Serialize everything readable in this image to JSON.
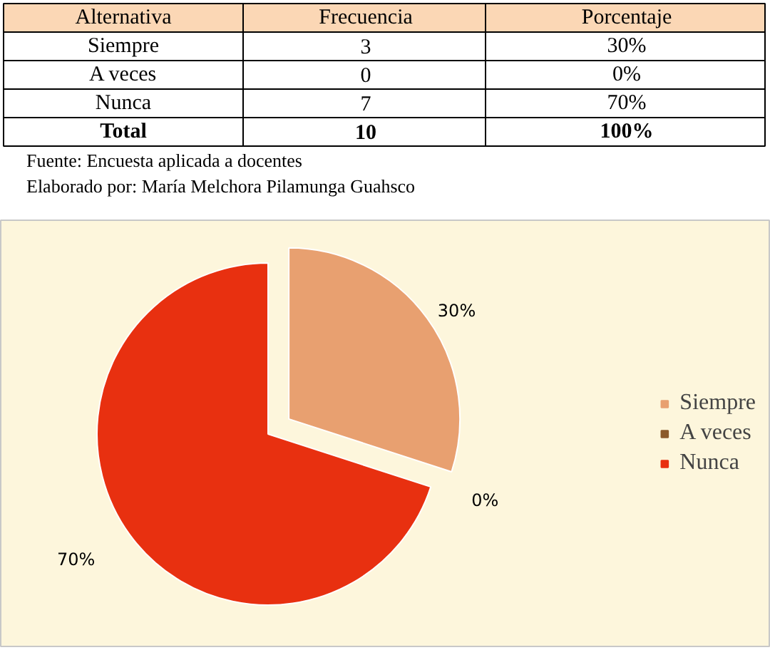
{
  "chart_data": {
    "type": "pie",
    "categories": [
      "Siempre",
      "A veces",
      "Nunca"
    ],
    "values": [
      30,
      0,
      70
    ],
    "colors": [
      "#e8a070",
      "#8b5a2b",
      "#e83010"
    ],
    "value_labels": [
      "30%",
      "0%",
      "70%"
    ],
    "legend": "right",
    "annotations": [
      "Alternativa",
      "Frecuencia",
      "Porcentaje",
      "Siempre",
      "3",
      "30%",
      "A veces",
      "0",
      "0%",
      "Nunca",
      "7",
      "70%",
      "Total",
      "10",
      "100%",
      "Fuente: Encuesta aplicada a docentes",
      "Elaborado por: María Melchora Pilamunga Guahsco"
    ]
  }
}
